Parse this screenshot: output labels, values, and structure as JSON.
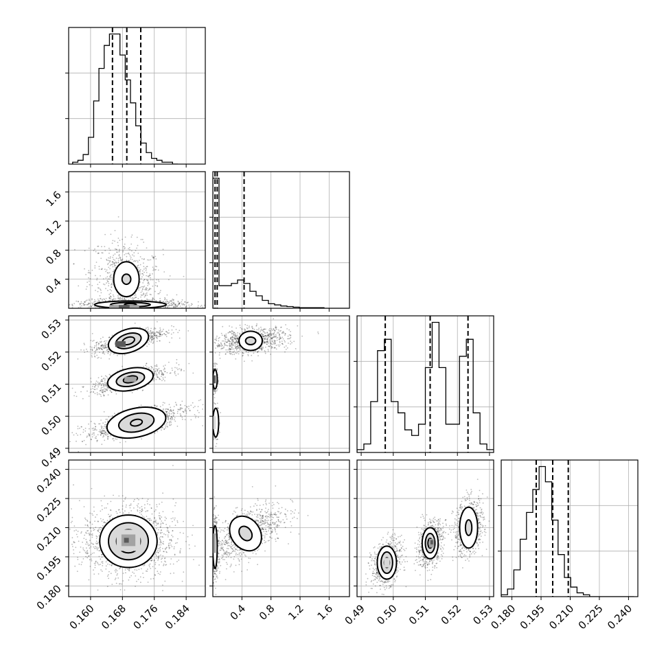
{
  "chart_data": {
    "type": "corner",
    "grid": true,
    "parameters": [
      {
        "ticks": [
          "0.160",
          "0.168",
          "0.176",
          "0.184"
        ],
        "range": [
          0.1545,
          0.1888
        ],
        "quantiles": [
          0.1655,
          0.1691,
          0.1726
        ],
        "hist": {
          "edges_start": 0.1555,
          "bin_width": 0.00132,
          "counts": [
            1,
            2,
            5,
            14,
            33,
            50,
            62,
            68,
            68,
            57,
            44,
            32,
            20,
            11,
            6,
            3,
            2,
            1,
            1,
            0
          ]
        }
      },
      {
        "ticks": [
          "0.4",
          "0.8",
          "1.2",
          "1.6"
        ],
        "range": [
          0.0,
          1.88
        ],
        "quantiles": [
          0.03,
          0.06,
          0.43
        ],
        "hist": {
          "edges_start": 0.0,
          "bin_width": 0.085,
          "counts": [
            230,
            40,
            40,
            44,
            50,
            44,
            30,
            22,
            14,
            8,
            6,
            4,
            3,
            2,
            1,
            1,
            1,
            1,
            0,
            0,
            0,
            0
          ]
        }
      },
      {
        "ticks": [
          "0.49",
          "0.50",
          "0.51",
          "0.52",
          "0.53"
        ],
        "range": [
          0.4887,
          0.5313
        ],
        "quantiles": [
          0.4975,
          0.5115,
          0.5233
        ],
        "hist": {
          "edges_start": 0.4887,
          "bin_width": 0.00213,
          "counts": [
            1,
            3,
            18,
            36,
            40,
            18,
            14,
            8,
            6,
            10,
            30,
            46,
            30,
            10,
            10,
            34,
            40,
            14,
            3,
            1
          ]
        }
      },
      {
        "ticks": [
          "0.180",
          "0.195",
          "0.210",
          "0.225",
          "0.240"
        ],
        "range": [
          0.1745,
          0.2448
        ],
        "quantiles": [
          0.1925,
          0.201,
          0.209
        ],
        "hist": {
          "edges_start": 0.1745,
          "bin_width": 0.00325,
          "counts": [
            1,
            4,
            14,
            30,
            44,
            56,
            68,
            60,
            40,
            22,
            10,
            5,
            2,
            1,
            0,
            0,
            0,
            0,
            0,
            0,
            0
          ]
        }
      }
    ],
    "pairs": [
      {
        "row": 1,
        "col": 0,
        "clusters": [
          {
            "mx": 0.169,
            "my": 0.4,
            "sx": 0.0035,
            "sy": 0.2,
            "rho": -0.2,
            "n": 700,
            "levels": [
              {
                "hw": 0.0032,
                "hh": 0.24
              },
              {
                "hw": 0.0011,
                "hh": 0.07
              }
            ]
          },
          {
            "mx": 0.17,
            "my": 0.05,
            "sx": 0.005,
            "sy": 0.025,
            "rho": 0.0,
            "n": 900,
            "levels": [
              {
                "hw": 0.009,
                "hh": 0.05
              },
              {
                "hw": 0.005,
                "hh": 0.03
              },
              {
                "hw": 0.0015,
                "hh": 0.015
              }
            ]
          }
        ],
        "density": [
          {
            "x": 0.166,
            "y": 0.02,
            "w": 0.0026,
            "h": 0.05,
            "k": 3
          },
          {
            "x": 0.1685,
            "y": 0.02,
            "w": 0.0028,
            "h": 0.05,
            "k": 4
          },
          {
            "x": 0.171,
            "y": 0.02,
            "w": 0.0024,
            "h": 0.05,
            "k": 3
          }
        ]
      },
      {
        "row": 2,
        "col": 0,
        "clusters": [
          {
            "mx": 0.1695,
            "my": 0.5235,
            "sx": 0.0035,
            "sy": 0.0015,
            "rho": 0.7,
            "n": 800,
            "levels": [
              {
                "hw": 0.0052,
                "hh": 0.0036,
                "rot": -18
              },
              {
                "hw": 0.0033,
                "hh": 0.0022,
                "rot": -18
              },
              {
                "hw": 0.0016,
                "hh": 0.0011,
                "rot": -18
              }
            ]
          },
          {
            "mx": 0.17,
            "my": 0.5115,
            "sx": 0.0038,
            "sy": 0.0015,
            "rho": 0.7,
            "n": 800,
            "levels": [
              {
                "hw": 0.0058,
                "hh": 0.0034,
                "rot": -12
              },
              {
                "hw": 0.0036,
                "hh": 0.0021,
                "rot": -12
              },
              {
                "hw": 0.0018,
                "hh": 0.001,
                "rot": -12
              }
            ]
          },
          {
            "mx": 0.1715,
            "my": 0.498,
            "sx": 0.005,
            "sy": 0.002,
            "rho": 0.7,
            "n": 900,
            "levels": [
              {
                "hw": 0.0075,
                "hh": 0.0045,
                "rot": -12
              },
              {
                "hw": 0.0045,
                "hh": 0.0028,
                "rot": -12
              },
              {
                "hw": 0.0015,
                "hh": 0.001,
                "rot": -12
              }
            ]
          }
        ],
        "density": [
          {
            "x": 0.1675,
            "y": 0.5225,
            "w": 0.0026,
            "h": 0.0018,
            "k": 4
          },
          {
            "x": 0.17,
            "y": 0.5115,
            "w": 0.003,
            "h": 0.0016,
            "k": 3
          }
        ]
      },
      {
        "row": 2,
        "col": 1,
        "clusters": [
          {
            "mx": 0.52,
            "my": 0.5235,
            "sx": 0.2,
            "sy": 0.0015,
            "rho": 0.3,
            "n": 900,
            "levels": [
              {
                "hw": 0.16,
                "hh": 0.003
              },
              {
                "hw": 0.07,
                "hh": 0.0012
              }
            ]
          },
          {
            "mx": 0.03,
            "my": 0.5115,
            "sx": 0.015,
            "sy": 0.0015,
            "rho": 0.0,
            "n": 300,
            "levels": [
              {
                "hw": 0.03,
                "hh": 0.003
              }
            ]
          },
          {
            "mx": 0.04,
            "my": 0.498,
            "sx": 0.015,
            "sy": 0.002,
            "rho": 0.0,
            "n": 300,
            "levels": [
              {
                "hw": 0.04,
                "hh": 0.0045
              }
            ]
          }
        ],
        "density": [
          {
            "x": 0.02,
            "y": 0.5115,
            "w": 0.04,
            "h": 0.0025,
            "k": 4
          },
          {
            "x": 0.02,
            "y": 0.498,
            "w": 0.04,
            "h": 0.004,
            "k": 2
          }
        ]
      },
      {
        "row": 3,
        "col": 0,
        "clusters": [
          {
            "mx": 0.1695,
            "my": 0.203,
            "sx": 0.0045,
            "sy": 0.007,
            "rho": 0.0,
            "n": 1400,
            "levels": [
              {
                "hw": 0.0072,
                "hh": 0.0135
              },
              {
                "hw": 0.005,
                "hh": 0.0095
              },
              {
                "hw": 0.003,
                "hh": 0.006
              },
              {
                "hw": 0.0012,
                "hh": 0.0025
              }
            ]
          }
        ],
        "density": [
          {
            "x": 0.1695,
            "y": 0.2035,
            "w": 0.006,
            "h": 0.011,
            "k": 2
          },
          {
            "x": 0.1695,
            "y": 0.2035,
            "w": 0.0035,
            "h": 0.006,
            "k": 3
          },
          {
            "x": 0.169,
            "y": 0.2035,
            "w": 0.0012,
            "h": 0.0025,
            "k": 4
          }
        ]
      },
      {
        "row": 3,
        "col": 1,
        "clusters": [
          {
            "mx": 0.45,
            "my": 0.207,
            "sx": 0.2,
            "sy": 0.006,
            "rho": 0.6,
            "n": 900,
            "levels": [
              {
                "hw": 0.2,
                "hh": 0.0095,
                "rot": -35
              },
              {
                "hw": 0.08,
                "hh": 0.004,
                "rot": -35
              }
            ]
          },
          {
            "mx": 0.03,
            "my": 0.2,
            "sx": 0.015,
            "sy": 0.006,
            "rho": 0.0,
            "n": 400,
            "levels": [
              {
                "hw": 0.03,
                "hh": 0.011
              }
            ]
          }
        ],
        "density": [
          {
            "x": 0.02,
            "y": 0.202,
            "w": 0.04,
            "h": 0.01,
            "k": 3
          }
        ]
      },
      {
        "row": 3,
        "col": 2,
        "clusters": [
          {
            "mx": 0.498,
            "my": 0.192,
            "sx": 0.0018,
            "sy": 0.0045,
            "rho": 0.3,
            "n": 700,
            "levels": [
              {
                "hw": 0.003,
                "hh": 0.0085
              },
              {
                "hw": 0.0018,
                "hh": 0.0055
              },
              {
                "hw": 0.0008,
                "hh": 0.0025
              }
            ]
          },
          {
            "mx": 0.5115,
            "my": 0.202,
            "sx": 0.0015,
            "sy": 0.0045,
            "rho": 0.3,
            "n": 700,
            "levels": [
              {
                "hw": 0.0025,
                "hh": 0.008
              },
              {
                "hw": 0.0015,
                "hh": 0.005
              },
              {
                "hw": 0.0007,
                "hh": 0.0025
              }
            ]
          },
          {
            "mx": 0.5235,
            "my": 0.21,
            "sx": 0.0018,
            "sy": 0.0055,
            "rho": 0.2,
            "n": 700,
            "levels": [
              {
                "hw": 0.0028,
                "hh": 0.0105
              },
              {
                "hw": 0.001,
                "hh": 0.004
              }
            ]
          }
        ],
        "density": [
          {
            "x": 0.498,
            "y": 0.192,
            "w": 0.0018,
            "h": 0.005,
            "k": 2
          },
          {
            "x": 0.512,
            "y": 0.202,
            "w": 0.0016,
            "h": 0.0045,
            "k": 3
          },
          {
            "x": 0.512,
            "y": 0.2025,
            "w": 0.0008,
            "h": 0.0022,
            "k": 4
          }
        ]
      }
    ]
  }
}
